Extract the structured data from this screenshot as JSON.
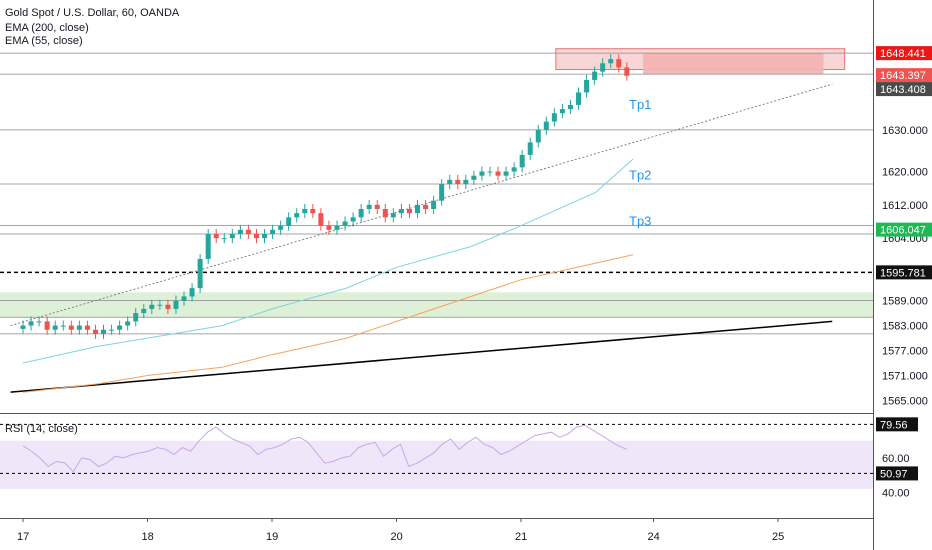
{
  "legend": {
    "title": "Gold Spot / U.S. Dollar, 60, OANDA",
    "ema200": "EMA (200, close)",
    "ema55": "EMA (55, close)"
  },
  "rsi_legend": "RSI (14, close)",
  "colors": {
    "up": "#26a69a",
    "down": "#ef5350",
    "ema55": "#7fd3e0",
    "ema200": "#f7a35c",
    "target_zone": "#c8e6c9",
    "stop_zone": "#f5b1b1",
    "rsi_line": "#c9a7e6",
    "rsi_band": "#f0e6fa",
    "tp_text": "#2196f3"
  },
  "chart_data": [
    {
      "type": "candlestick",
      "title": "Gold Spot / U.S. Dollar, 60, OANDA",
      "ylim": [
        1562,
        1660
      ],
      "y_ticks": [
        1565.0,
        1571.0,
        1577.0,
        1583.0,
        1589.0,
        1595.781,
        1604.0,
        1606.047,
        1612.0,
        1620.0,
        1630.0,
        1643.397,
        1643.408,
        1648.441
      ],
      "x_ticks": [
        "17",
        "18",
        "19",
        "20",
        "21",
        "24",
        "25"
      ],
      "grid": false,
      "series": [
        {
          "name": "EMA (55, close)",
          "points": [
            [
              0,
              1574
            ],
            [
              0.6,
              1578
            ],
            [
              1,
              1580
            ],
            [
              1.6,
              1583
            ],
            [
              2,
              1587
            ],
            [
              2.6,
              1592
            ],
            [
              3,
              1597
            ],
            [
              3.6,
              1602
            ],
            [
              4,
              1607
            ],
            [
              4.6,
              1615
            ],
            [
              4.9,
              1623
            ]
          ]
        },
        {
          "name": "EMA (200, close)",
          "points": [
            [
              0,
              1567
            ],
            [
              0.6,
              1569
            ],
            [
              1,
              1571
            ],
            [
              1.6,
              1573
            ],
            [
              2,
              1576
            ],
            [
              2.6,
              1580
            ],
            [
              3,
              1584
            ],
            [
              3.6,
              1590
            ],
            [
              4,
              1594
            ],
            [
              4.6,
              1598
            ],
            [
              4.9,
              1600
            ]
          ]
        }
      ],
      "closes": [
        1583,
        1584,
        1584,
        1582,
        1583,
        1583,
        1582,
        1583,
        1582,
        1581,
        1582,
        1582,
        1583,
        1584,
        1586,
        1587,
        1588,
        1588,
        1587,
        1589,
        1590,
        1592,
        1599,
        1605,
        1604,
        1604,
        1605,
        1606,
        1605,
        1604,
        1605,
        1606,
        1607,
        1609,
        1610,
        1611,
        1610,
        1607,
        1606,
        1607,
        1608,
        1609,
        1611,
        1612,
        1611,
        1609,
        1610,
        1611,
        1610,
        1612,
        1611,
        1613,
        1617,
        1618,
        1617,
        1618,
        1619,
        1620,
        1620,
        1619,
        1620,
        1621,
        1624,
        1627,
        1630,
        1632,
        1634,
        1635,
        1636,
        1639,
        1642,
        1644,
        1646,
        1647,
        1645,
        1643
      ],
      "candle_start": 0,
      "candle_end": 4.85,
      "horizontal_levels": [
        1648.441,
        1643.397,
        1630.0,
        1617.0,
        1607.0,
        1605.0,
        1595.781,
        1589.0,
        1585.0,
        1581.0
      ],
      "trendline_support": [
        [
          -0.1,
          1567
        ],
        [
          6.5,
          1584
        ]
      ],
      "trendline_dotted": [
        [
          -0.1,
          1583
        ],
        [
          6.5,
          1641
        ]
      ],
      "position": {
        "entry": 1643.408,
        "stop": 1648.441,
        "target": 1606.047,
        "x_start": 4.98,
        "x_end": 6.43
      },
      "stop_band": [
        1644.5,
        1649.5,
        4.28,
        6.6
      ],
      "targets": [
        {
          "label": "Tp1",
          "price": 1636,
          "x": 4.98
        },
        {
          "label": "Tp2",
          "price": 1619,
          "x": 4.98
        },
        {
          "label": "Tp3",
          "price": 1608,
          "x": 4.98
        }
      ],
      "support_zone": [
        1585,
        1591
      ],
      "current_price": 1643.397
    },
    {
      "type": "line",
      "title": "RSI (14, close)",
      "ylim": [
        25,
        85
      ],
      "y_ticks": [
        40.0,
        50.97,
        60.0,
        79.56
      ],
      "levels": [
        79.56,
        50.97
      ],
      "band": [
        42,
        70
      ],
      "values": [
        67,
        64,
        60,
        55,
        58,
        57,
        52,
        60,
        59,
        55,
        57,
        61,
        60,
        62,
        63,
        64,
        66,
        65,
        62,
        66,
        64,
        70,
        75,
        78,
        74,
        71,
        69,
        67,
        62,
        65,
        66,
        68,
        71,
        72,
        69,
        63,
        57,
        58,
        60,
        61,
        66,
        68,
        69,
        61,
        65,
        68,
        55,
        57,
        60,
        63,
        68,
        71,
        65,
        69,
        72,
        68,
        66,
        62,
        64,
        67,
        70,
        73,
        74,
        75,
        72,
        74,
        78,
        79,
        76,
        73,
        70,
        67,
        65
      ]
    }
  ],
  "price_axis_labels": {
    "stop_label": "1648.441",
    "current_label": "1643.397",
    "entry_label": "1643.408",
    "target_label": "1606.047",
    "level_label": "1595.781",
    "rsi_high_label": "79.56",
    "rsi_mid_label": "50.97"
  }
}
